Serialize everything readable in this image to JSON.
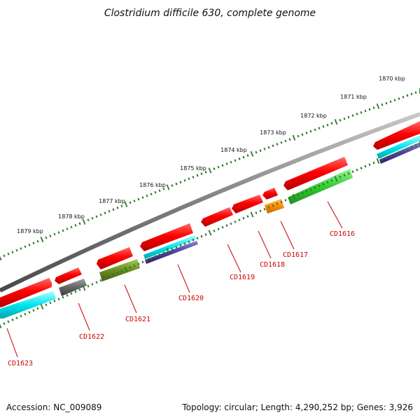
{
  "title": "Clostridium difficile 630, complete genome",
  "footer": {
    "accession": "Accession: NC_009089",
    "summary": "Topology: circular; Length: 4,290,252 bp; Genes: 3,926"
  },
  "colors": {
    "backbone": "#808080",
    "gene_label": "#cc0000",
    "tick": "#2a7a2a"
  },
  "kbp_labels": [
    "1870 kbp",
    "1871 kbp",
    "1872 kbp",
    "1873 kbp",
    "1874 kbp",
    "1875 kbp",
    "1876 kbp",
    "1877 kbp",
    "1878 kbp",
    "1879 kbp"
  ],
  "gene_labels": [
    "CD1616",
    "CD1617",
    "CD1618",
    "CD1619",
    "CD1620",
    "CD1621",
    "CD1622",
    "CD1623"
  ],
  "track_colors": {
    "cds": "#ff0000",
    "cyan": "#00e5ee",
    "navy": "#4b3f9a",
    "gray": "#666666",
    "olive": "#6b8e23",
    "orange": "#ff8c00",
    "green": "#33cc33"
  }
}
